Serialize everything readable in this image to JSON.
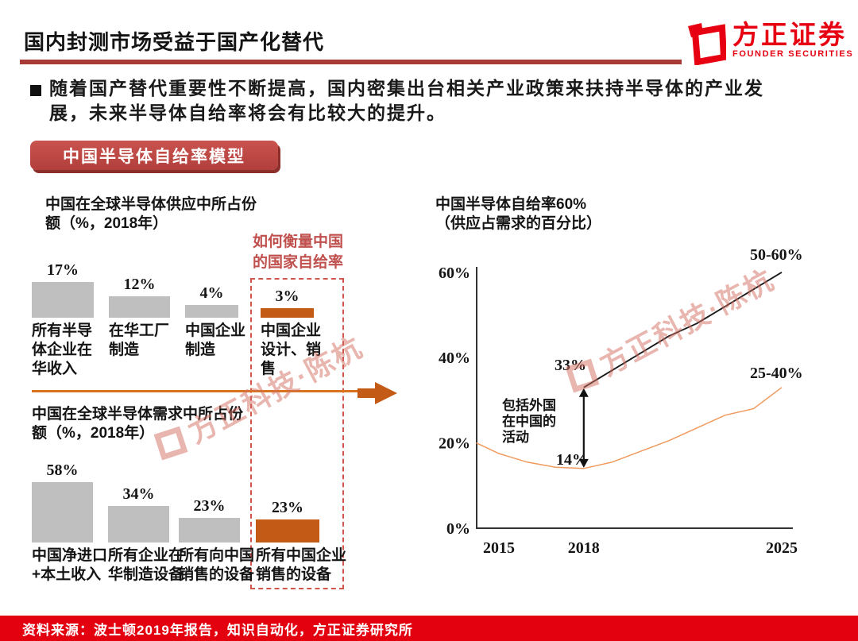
{
  "header": {
    "title": "国内封测市场受益于国产化替代",
    "logo_name": "方正证券",
    "logo_subtitle": "FOUNDER SECURITIES"
  },
  "bullet": "随着国产替代重要性不断提高，国内密集出台相关产业政策来扶持半导体的产业发\n展，未来半导体自给率将会有比较大的提升。",
  "badge": "中国半导体自给率模型",
  "annotation_heading": "如何衡量中国\n的国家自给率",
  "watermark": "方正科技·陈杭",
  "footer_source": "资料来源：波士顿2019年报告，知识自动化，方正证券研究所",
  "colors": {
    "brand_red": "#E60012",
    "title_rule_red": "#A83A36",
    "badge_red": "#BE4B48",
    "accent_orange": "#C35A15",
    "divider_orange": "#D9731F",
    "line_orange": "#F09A5E",
    "line_black": "#1a1a1a",
    "bar_gray": "#BFBFBF",
    "dashed_red": "#D0564B",
    "heading_red": "#C0504D"
  },
  "chart_data": [
    {
      "type": "bar",
      "title": "中国在全球半导体供应中所占份\n额（%，2018年）",
      "categories": [
        "所有半导\n体企业在\n华收入",
        "在华工厂\n制造",
        "中国企业\n制造",
        "中国企业\n设计、销\n售"
      ],
      "values": [
        17,
        12,
        4,
        3
      ],
      "value_labels": [
        "17%",
        "12%",
        "4%",
        "3%"
      ],
      "highlight_index": 3,
      "unit": "%"
    },
    {
      "type": "bar",
      "title": "中国在全球半导体需求中所占份\n额（%，2018年）",
      "categories": [
        "中国净进口\n+本土收入",
        "所有企业在\n华制造设备",
        "所有向中国\n销售的设备",
        "所有中国企业\n销售的设备"
      ],
      "values": [
        58,
        34,
        23,
        23
      ],
      "value_labels": [
        "58%",
        "34%",
        "23%",
        "23%"
      ],
      "highlight_index": 3,
      "unit": "%"
    },
    {
      "type": "line",
      "title": "中国半导体自给率60%",
      "subtitle": "（供应占需求的百分比）",
      "x_ticks": [
        "2015",
        "2018",
        "2025"
      ],
      "y_ticks": [
        "60%",
        "40%",
        "20%",
        "0%"
      ],
      "y_tick_values": [
        60,
        40,
        20,
        0
      ],
      "ylim": [
        0,
        60
      ],
      "xlim": [
        2014.2,
        2025
      ],
      "series": [
        {
          "end_label": "50-60%",
          "color_key": "line_black",
          "points": [
            [
              2018,
              33
            ],
            [
              2019,
              37
            ],
            [
              2020,
              41
            ],
            [
              2021,
              45
            ],
            [
              2022,
              48
            ],
            [
              2023,
              52
            ],
            [
              2024,
              56
            ],
            [
              2025,
              60
            ]
          ]
        },
        {
          "end_label": "25-40%",
          "color_key": "line_orange",
          "points": [
            [
              2014.2,
              20
            ],
            [
              2015,
              17.5
            ],
            [
              2016,
              15.5
            ],
            [
              2017,
              14.3
            ],
            [
              2018,
              14
            ],
            [
              2019,
              15.5
            ],
            [
              2020,
              18
            ],
            [
              2021,
              20.5
            ],
            [
              2022,
              23.5
            ],
            [
              2023,
              26.5
            ],
            [
              2024,
              28
            ],
            [
              2025,
              33
            ]
          ]
        }
      ],
      "annotations": {
        "top_value": "33%",
        "bottom_value": "14%",
        "gap_label": "包括外国\n在中国的\n活动",
        "end_label_top": "50-60%",
        "end_label_bottom": "25-40%"
      }
    }
  ]
}
